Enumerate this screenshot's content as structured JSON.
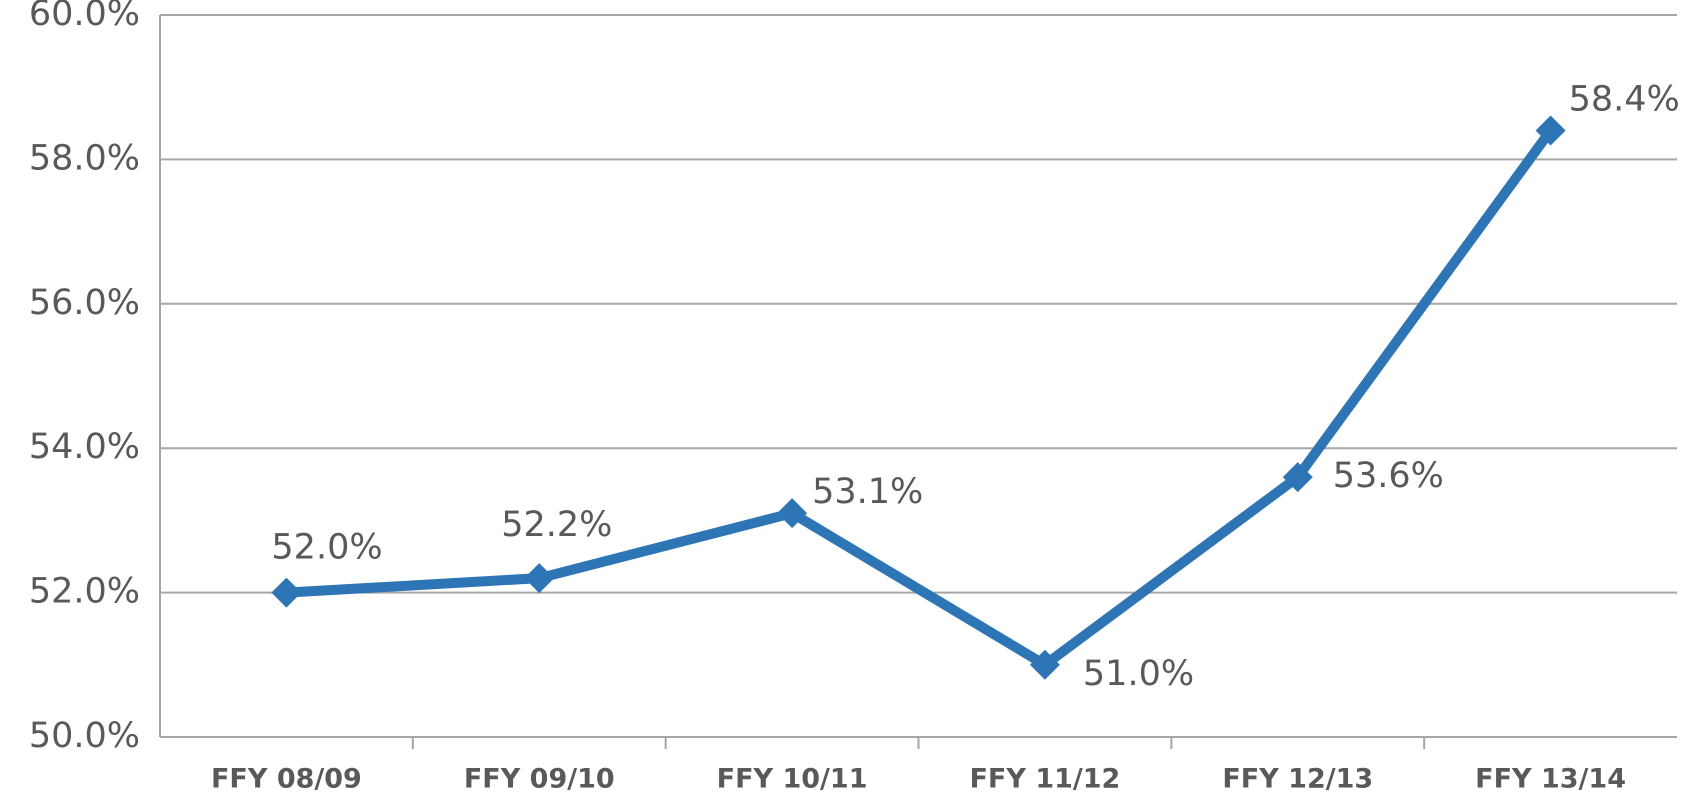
{
  "chart_data": {
    "type": "line",
    "categories": [
      "FFY 08/09",
      "FFY 09/10",
      "FFY 10/11",
      "FFY 11/12",
      "FFY 12/13",
      "FFY 13/14"
    ],
    "series": [
      {
        "name": null,
        "color": "#2e75b6",
        "values": [
          52.0,
          52.2,
          53.1,
          51.0,
          53.6,
          58.4
        ],
        "value_labels": [
          "52.0%",
          "52.2%",
          "53.1%",
          "51.0%",
          "53.6%",
          "58.4%"
        ]
      }
    ],
    "ylim": [
      50,
      60
    ],
    "yticks": [
      {
        "value": 50,
        "label": "50.0%"
      },
      {
        "value": 52,
        "label": "52.0%"
      },
      {
        "value": 54,
        "label": "54.0%"
      },
      {
        "value": 56,
        "label": "56.0%"
      },
      {
        "value": 58,
        "label": "58.0%"
      },
      {
        "value": 60,
        "label": "60.0%"
      }
    ],
    "grid": true
  }
}
